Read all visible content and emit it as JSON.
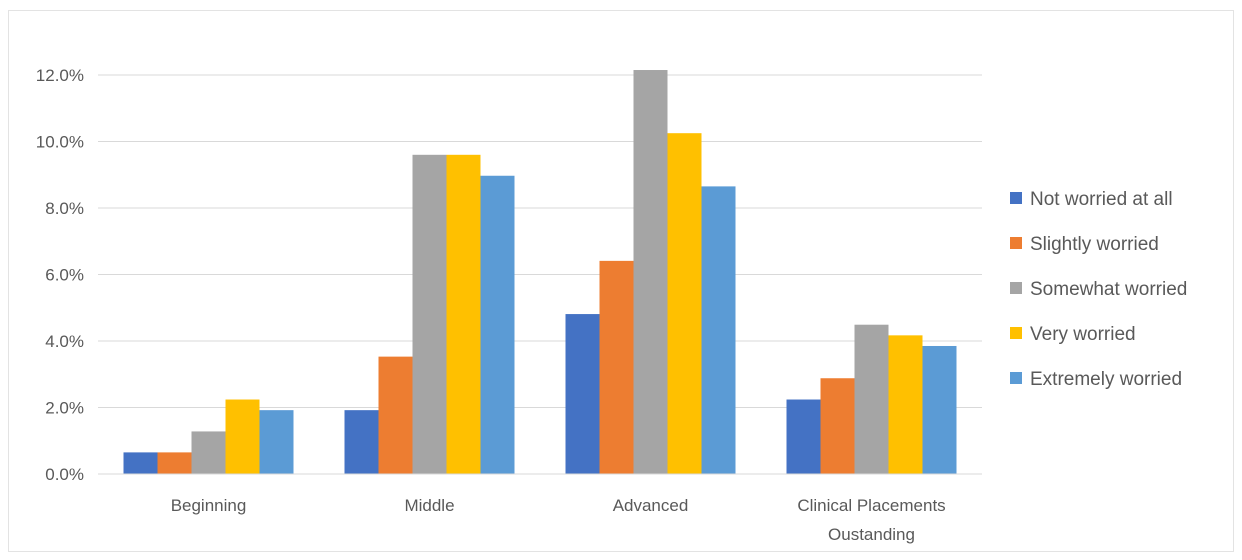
{
  "chart_data": {
    "type": "bar",
    "title": "",
    "xlabel": "",
    "ylabel": "",
    "categories": [
      "Beginning",
      "Middle",
      "Advanced",
      "Clinical Placements Oustanding"
    ],
    "ylim": [
      0,
      12
    ],
    "yticks": [
      "0.0%",
      "2.0%",
      "4.0%",
      "6.0%",
      "8.0%",
      "10.0%",
      "12.0%"
    ],
    "grid": true,
    "legend_position": "right",
    "series": [
      {
        "name": "Not worried at all",
        "color": "#4472c4",
        "values": [
          0.65,
          1.92,
          4.81,
          2.24
        ]
      },
      {
        "name": "Slightly worried",
        "color": "#ed7d31",
        "values": [
          0.65,
          3.53,
          6.41,
          2.88
        ]
      },
      {
        "name": "Somewhat worried",
        "color": "#a5a5a5",
        "values": [
          1.28,
          9.6,
          12.15,
          4.49
        ]
      },
      {
        "name": "Very worried",
        "color": "#ffc000",
        "values": [
          2.24,
          9.6,
          10.25,
          4.17
        ]
      },
      {
        "name": "Extremely worried",
        "color": "#5b9bd5",
        "values": [
          1.92,
          8.97,
          8.65,
          3.85
        ]
      }
    ]
  }
}
